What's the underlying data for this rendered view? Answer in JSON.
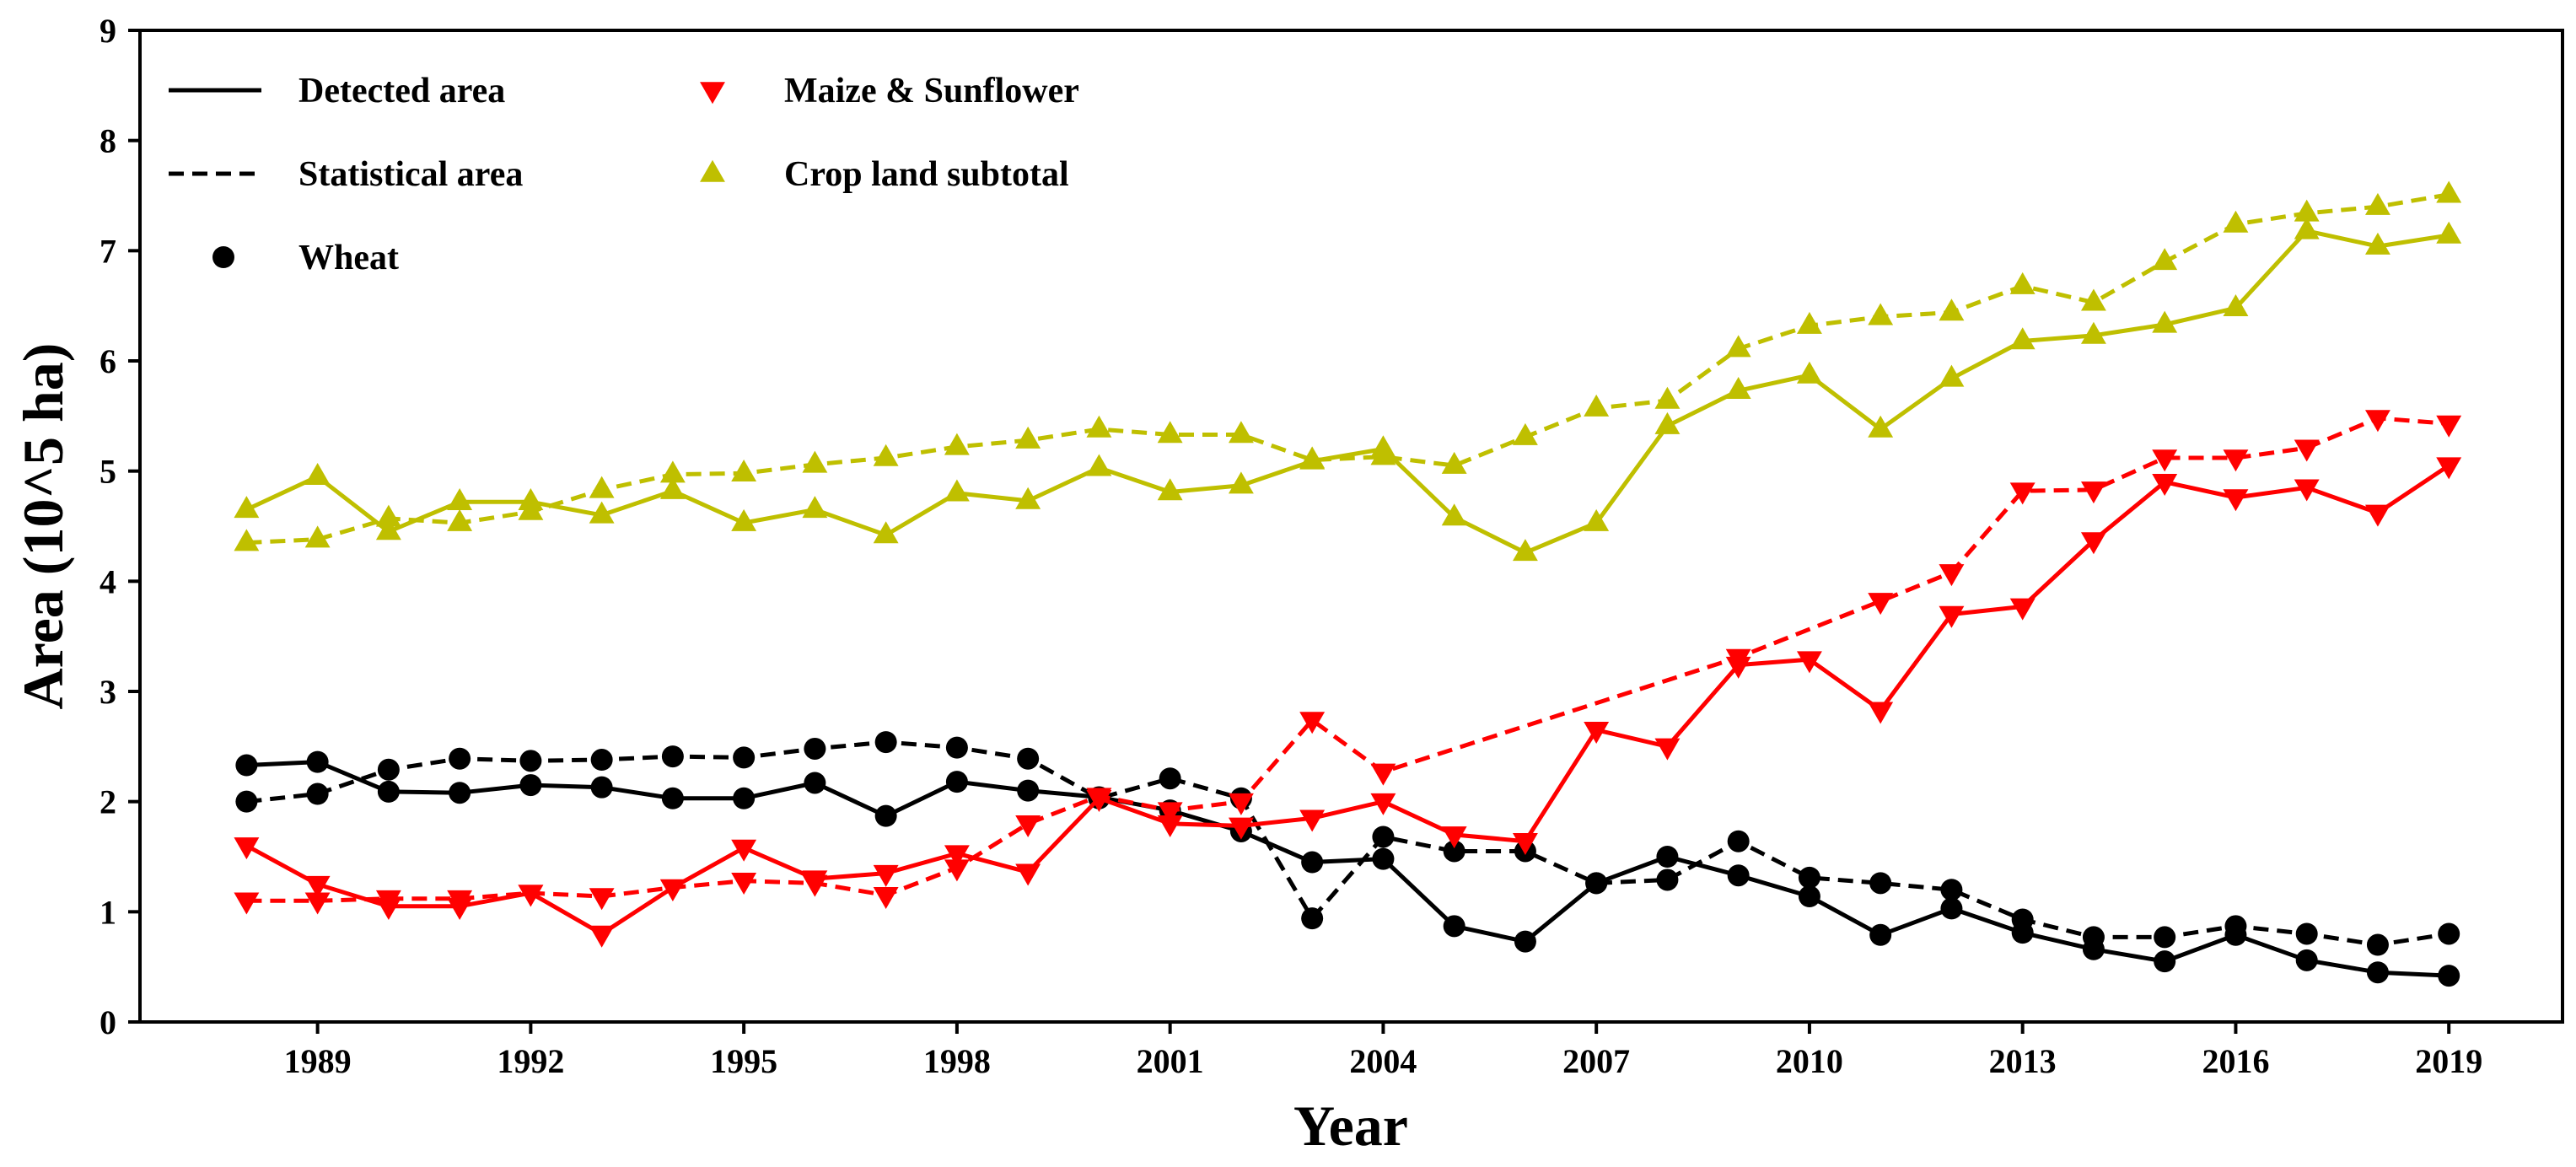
{
  "chart_data": {
    "type": "line",
    "title": "",
    "xlabel": "Year",
    "ylabel": "Area (10^5 ha)",
    "xlim": [
      1986.5,
      2020.6
    ],
    "ylim": [
      0,
      9
    ],
    "xticks": [
      1989,
      1992,
      1995,
      1998,
      2001,
      2004,
      2007,
      2010,
      2013,
      2016,
      2019
    ],
    "yticks": [
      0,
      1,
      2,
      3,
      4,
      5,
      6,
      7,
      8,
      9
    ],
    "grid": false,
    "legend_position": "top-left",
    "legend": [
      {
        "label": "Detected area",
        "kind": "line-solid",
        "color": "#000000"
      },
      {
        "label": "Statistical area",
        "kind": "line-dashed",
        "color": "#000000"
      },
      {
        "label": "Wheat",
        "kind": "marker-circle",
        "color": "#000000"
      },
      {
        "label": "Maize & Sunflower",
        "kind": "marker-triangle-down",
        "color": "#ff0000"
      },
      {
        "label": "Crop land subtotal",
        "kind": "marker-triangle-up",
        "color": "#bfbf00"
      }
    ],
    "series": [
      {
        "name": "Wheat detected area",
        "color": "#000000",
        "dash": "solid",
        "marker": "circle",
        "x": [
          1988,
          1989,
          1990,
          1991,
          1992,
          1993,
          1994,
          1995,
          1996,
          1997,
          1998,
          1999,
          2000,
          2001,
          2002,
          2003,
          2004,
          2005,
          2006,
          2007,
          2008,
          2009,
          2010,
          2011,
          2012,
          2013,
          2014,
          2015,
          2016,
          2017,
          2018,
          2019
        ],
        "values": [
          2.33,
          2.36,
          2.09,
          2.08,
          2.15,
          2.13,
          2.03,
          2.03,
          2.17,
          1.87,
          2.18,
          2.1,
          2.04,
          1.92,
          1.73,
          1.45,
          1.48,
          0.87,
          0.73,
          1.26,
          1.5,
          1.33,
          1.14,
          0.79,
          1.03,
          0.81,
          0.66,
          0.55,
          0.79,
          0.56,
          0.45,
          0.42
        ]
      },
      {
        "name": "Wheat statistical area",
        "color": "#000000",
        "dash": "dashed",
        "marker": "circle",
        "x": [
          1988,
          1989,
          1990,
          1991,
          1992,
          1993,
          1994,
          1995,
          1996,
          1997,
          1998,
          1999,
          2000,
          2001,
          2002,
          2003,
          2004,
          2005,
          2006,
          2007,
          2008,
          2009,
          2010,
          2011,
          2012,
          2013,
          2014,
          2015,
          2016,
          2017,
          2018,
          2019
        ],
        "values": [
          2.0,
          2.07,
          2.29,
          2.39,
          2.37,
          2.38,
          2.41,
          2.4,
          2.48,
          2.54,
          2.49,
          2.39,
          2.03,
          2.21,
          2.03,
          0.94,
          1.68,
          1.55,
          1.55,
          1.26,
          1.29,
          1.64,
          1.31,
          1.26,
          1.2,
          0.93,
          0.77,
          0.77,
          0.87,
          0.8,
          0.7,
          0.8
        ]
      },
      {
        "name": "Maize & Sunflower detected area",
        "color": "#ff0000",
        "dash": "solid",
        "marker": "triangle-down",
        "x": [
          1988,
          1989,
          1990,
          1991,
          1992,
          1993,
          1994,
          1995,
          1996,
          1997,
          1998,
          1999,
          2000,
          2001,
          2002,
          2003,
          2004,
          2005,
          2006,
          2007,
          2008,
          2009,
          2010,
          2011,
          2012,
          2013,
          2014,
          2015,
          2016,
          2017,
          2018,
          2019
        ],
        "values": [
          1.6,
          1.25,
          1.05,
          1.05,
          1.17,
          0.8,
          1.22,
          1.58,
          1.3,
          1.35,
          1.53,
          1.36,
          2.03,
          1.8,
          1.78,
          1.85,
          2.0,
          1.7,
          1.64,
          2.65,
          2.5,
          3.24,
          3.29,
          2.83,
          3.7,
          3.77,
          4.37,
          4.9,
          4.76,
          4.85,
          4.62,
          5.05
        ]
      },
      {
        "name": "Maize & Sunflower statistical area",
        "color": "#ff0000",
        "dash": "dashed",
        "marker": "triangle-down",
        "x": [
          1988,
          1989,
          1990,
          1991,
          1992,
          1993,
          1994,
          1995,
          1996,
          1997,
          1998,
          1999,
          2000,
          2001,
          2002,
          2003,
          2004,
          2009,
          2011,
          2012,
          2013,
          2014,
          2015,
          2016,
          2017,
          2018,
          2019
        ],
        "values": [
          1.1,
          1.1,
          1.12,
          1.12,
          1.17,
          1.14,
          1.22,
          1.28,
          1.26,
          1.15,
          1.4,
          1.8,
          2.05,
          1.92,
          2.0,
          2.74,
          2.27,
          3.31,
          3.82,
          4.08,
          4.82,
          4.83,
          5.12,
          5.12,
          5.21,
          5.48,
          5.43
        ]
      },
      {
        "name": "Crop land subtotal detected area",
        "color": "#bfbf00",
        "dash": "solid",
        "marker": "triangle-up",
        "x": [
          1988,
          1989,
          1990,
          1991,
          1992,
          1993,
          1994,
          1995,
          1996,
          1997,
          1998,
          1999,
          2000,
          2001,
          2002,
          2003,
          2004,
          2005,
          2006,
          2007,
          2008,
          2009,
          2010,
          2011,
          2012,
          2013,
          2014,
          2015,
          2016,
          2017,
          2018,
          2019
        ],
        "values": [
          4.65,
          4.95,
          4.45,
          4.72,
          4.72,
          4.6,
          4.82,
          4.53,
          4.65,
          4.42,
          4.8,
          4.73,
          5.03,
          4.81,
          4.87,
          5.09,
          5.2,
          4.58,
          4.26,
          4.53,
          5.41,
          5.73,
          5.87,
          5.38,
          5.84,
          6.18,
          6.23,
          6.33,
          6.48,
          7.18,
          7.04,
          7.14
        ]
      },
      {
        "name": "Crop land subtotal statistical area",
        "color": "#bfbf00",
        "dash": "dashed",
        "marker": "triangle-up",
        "x": [
          1988,
          1989,
          1990,
          1991,
          1992,
          1993,
          1994,
          1995,
          1996,
          1997,
          1998,
          1999,
          2000,
          2001,
          2002,
          2003,
          2004,
          2005,
          2006,
          2007,
          2008,
          2009,
          2010,
          2011,
          2012,
          2013,
          2014,
          2015,
          2016,
          2017,
          2018,
          2019
        ],
        "values": [
          4.35,
          4.38,
          4.57,
          4.53,
          4.63,
          4.83,
          4.97,
          4.98,
          5.06,
          5.12,
          5.22,
          5.28,
          5.38,
          5.33,
          5.33,
          5.1,
          5.13,
          5.05,
          5.31,
          5.57,
          5.64,
          6.11,
          6.32,
          6.4,
          6.44,
          6.68,
          6.53,
          6.9,
          7.24,
          7.34,
          7.4,
          7.51
        ]
      }
    ]
  }
}
